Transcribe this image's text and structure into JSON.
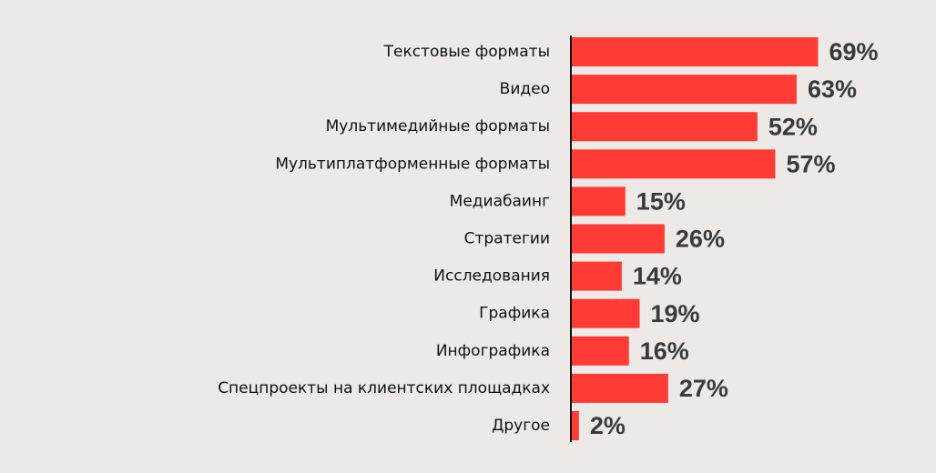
{
  "chart_data": {
    "type": "bar",
    "orientation": "horizontal",
    "color": "#ff3b35",
    "categories": [
      "Текстовые форматы",
      "Видео",
      "Мультимедийные форматы",
      "Мультиплатформенные форматы",
      "Медиабаинг",
      "Стратегии",
      "Исследования",
      "Графика",
      "Инфографика",
      "Спецпроекты на клиентских площадках",
      "Другое"
    ],
    "values": [
      69,
      63,
      52,
      57,
      15,
      26,
      14,
      19,
      16,
      27,
      2
    ],
    "value_labels": [
      "69%",
      "63%",
      "52%",
      "57%",
      "15%",
      "26%",
      "14%",
      "19%",
      "16%",
      "27%",
      "2%"
    ]
  }
}
